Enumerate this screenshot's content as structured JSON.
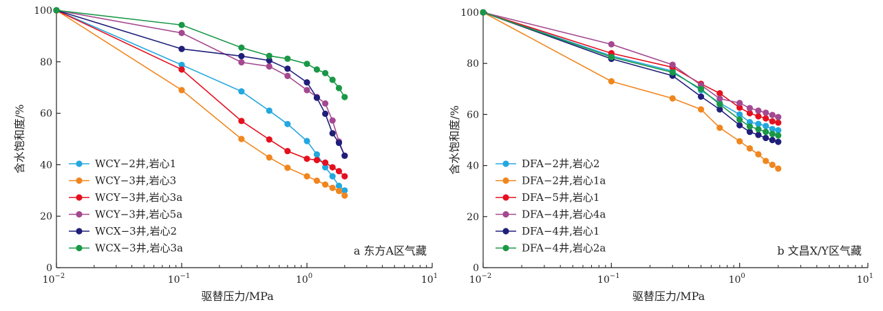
{
  "colors": {
    "cyan": "#23a7df",
    "orange": "#f0861e",
    "red": "#e5101f",
    "purple": "#a4488f",
    "navy": "#1f1f7a",
    "green": "#1a9846",
    "axis": "#222222"
  },
  "chart_data": [
    {
      "type": "line",
      "title": "",
      "panel_label": "a 东方A区气藏",
      "xlabel": "驱替压力/MPa",
      "ylabel": "含水饱和度/%",
      "x_scale": "log",
      "xlim": [
        0.01,
        10
      ],
      "ylim": [
        0,
        100
      ],
      "x_ticks": [
        {
          "base": "10",
          "exp": "−2"
        },
        {
          "base": "10",
          "exp": "−1"
        },
        {
          "base": "10",
          "exp": "0"
        },
        {
          "base": "10",
          "exp": "1"
        }
      ],
      "y_ticks": [
        "0",
        "20",
        "40",
        "60",
        "80",
        "100"
      ],
      "legend_position": "bottom-left",
      "series": [
        {
          "name": "WCY−2井,岩心1",
          "color_key": "cyan",
          "points": [
            [
              0.01,
              100
            ],
            [
              0.1,
              78.8
            ],
            [
              0.3,
              68.5
            ],
            [
              0.5,
              61
            ],
            [
              0.7,
              55.8
            ],
            [
              1.0,
              49.2
            ],
            [
              1.2,
              44
            ],
            [
              1.4,
              39
            ],
            [
              1.6,
              35.5
            ],
            [
              1.8,
              31.8
            ],
            [
              2.0,
              30
            ]
          ]
        },
        {
          "name": "WCY−3井,岩心3",
          "color_key": "orange",
          "points": [
            [
              0.01,
              100
            ],
            [
              0.1,
              69
            ],
            [
              0.3,
              50
            ],
            [
              0.5,
              42.8
            ],
            [
              0.7,
              38.8
            ],
            [
              1.0,
              35.5
            ],
            [
              1.2,
              33.8
            ],
            [
              1.4,
              32.3
            ],
            [
              1.6,
              31
            ],
            [
              1.8,
              29.8
            ],
            [
              2.0,
              28
            ]
          ]
        },
        {
          "name": "WCY−3井,岩心3a",
          "color_key": "red",
          "points": [
            [
              0.01,
              100
            ],
            [
              0.1,
              77
            ],
            [
              0.3,
              57
            ],
            [
              0.5,
              49.8
            ],
            [
              0.7,
              45.3
            ],
            [
              1.0,
              42.3
            ],
            [
              1.2,
              41.8
            ],
            [
              1.4,
              40.8
            ],
            [
              1.6,
              39
            ],
            [
              1.8,
              37.5
            ],
            [
              2.0,
              35.5
            ]
          ]
        },
        {
          "name": "WCY−3井,岩心5a",
          "color_key": "purple",
          "points": [
            [
              0.01,
              100
            ],
            [
              0.1,
              91.2
            ],
            [
              0.3,
              79.8
            ],
            [
              0.5,
              78.2
            ],
            [
              0.7,
              74.5
            ],
            [
              1.0,
              69
            ],
            [
              1.2,
              66.3
            ],
            [
              1.4,
              63.8
            ],
            [
              1.6,
              57.2
            ],
            [
              1.8,
              49
            ],
            [
              2.0,
              43.5
            ]
          ]
        },
        {
          "name": "WCX−3井,岩心2",
          "color_key": "navy",
          "points": [
            [
              0.01,
              100
            ],
            [
              0.1,
              85
            ],
            [
              0.3,
              82.2
            ],
            [
              0.5,
              80.5
            ],
            [
              0.7,
              77.3
            ],
            [
              1.0,
              72
            ],
            [
              1.2,
              66
            ],
            [
              1.4,
              59.8
            ],
            [
              1.6,
              52.2
            ],
            [
              1.8,
              48.5
            ],
            [
              2.0,
              43.5
            ]
          ]
        },
        {
          "name": "WCX−3井,岩心3a",
          "color_key": "green",
          "points": [
            [
              0.01,
              100
            ],
            [
              0.1,
              94.3
            ],
            [
              0.3,
              85.5
            ],
            [
              0.5,
              82.3
            ],
            [
              0.7,
              81.2
            ],
            [
              1.0,
              79.2
            ],
            [
              1.2,
              77
            ],
            [
              1.4,
              75.6
            ],
            [
              1.6,
              73
            ],
            [
              1.8,
              69.8
            ],
            [
              2.0,
              66.3
            ]
          ]
        }
      ]
    },
    {
      "type": "line",
      "title": "",
      "panel_label": "b 文昌X/Y区气藏",
      "xlabel": "驱替压力/MPa",
      "ylabel": "含水饱和度/%",
      "x_scale": "log",
      "xlim": [
        0.01,
        10
      ],
      "ylim": [
        0,
        100
      ],
      "x_ticks": [
        {
          "base": "10",
          "exp": "−2"
        },
        {
          "base": "10",
          "exp": "−1"
        },
        {
          "base": "10",
          "exp": "0"
        },
        {
          "base": "10",
          "exp": "1"
        }
      ],
      "y_ticks": [
        "0",
        "20",
        "40",
        "60",
        "80",
        "100"
      ],
      "legend_position": "bottom-left",
      "series": [
        {
          "name": "DFA−2井,岩心2",
          "color_key": "cyan",
          "points": [
            [
              0.01,
              100
            ],
            [
              0.1,
              83
            ],
            [
              0.3,
              77
            ],
            [
              0.5,
              69.5
            ],
            [
              0.7,
              64.5
            ],
            [
              1.0,
              60
            ],
            [
              1.2,
              57
            ],
            [
              1.4,
              56.3
            ],
            [
              1.6,
              55.5
            ],
            [
              1.8,
              54.3
            ],
            [
              2.0,
              53.8
            ]
          ]
        },
        {
          "name": "DFA−2井,岩心1a",
          "color_key": "orange",
          "points": [
            [
              0.01,
              100
            ],
            [
              0.1,
              73
            ],
            [
              0.3,
              66.3
            ],
            [
              0.5,
              62
            ],
            [
              0.7,
              54.8
            ],
            [
              1.0,
              49.5
            ],
            [
              1.2,
              46.7
            ],
            [
              1.4,
              44.4
            ],
            [
              1.6,
              41.8
            ],
            [
              1.8,
              40.3
            ],
            [
              2.0,
              38.8
            ]
          ]
        },
        {
          "name": "DFA−5井,岩心1",
          "color_key": "red",
          "points": [
            [
              0.01,
              100
            ],
            [
              0.1,
              84
            ],
            [
              0.3,
              78.5
            ],
            [
              0.5,
              72
            ],
            [
              0.7,
              68.3
            ],
            [
              1.0,
              62.7
            ],
            [
              1.2,
              60.5
            ],
            [
              1.4,
              59.3
            ],
            [
              1.6,
              58.5
            ],
            [
              1.8,
              57.3
            ],
            [
              2.0,
              56.8
            ]
          ]
        },
        {
          "name": "DFA−4井,岩心4a",
          "color_key": "purple",
          "points": [
            [
              0.01,
              100
            ],
            [
              0.1,
              87.5
            ],
            [
              0.3,
              79.5
            ],
            [
              0.5,
              71.5
            ],
            [
              0.7,
              66.2
            ],
            [
              1.0,
              64.5
            ],
            [
              1.2,
              62.5
            ],
            [
              1.4,
              61.5
            ],
            [
              1.6,
              60.7
            ],
            [
              1.8,
              59.8
            ],
            [
              2.0,
              59
            ]
          ]
        },
        {
          "name": "DFA−4井,岩心1",
          "color_key": "navy",
          "points": [
            [
              0.01,
              100
            ],
            [
              0.1,
              81.8
            ],
            [
              0.3,
              75.2
            ],
            [
              0.5,
              67
            ],
            [
              0.7,
              62
            ],
            [
              1.0,
              55.8
            ],
            [
              1.2,
              53.2
            ],
            [
              1.4,
              52
            ],
            [
              1.6,
              50.8
            ],
            [
              1.8,
              50
            ],
            [
              2.0,
              49.3
            ]
          ]
        },
        {
          "name": "DFA−4井,岩心2a",
          "color_key": "green",
          "points": [
            [
              0.01,
              100
            ],
            [
              0.1,
              82.5
            ],
            [
              0.3,
              76.5
            ],
            [
              0.5,
              70
            ],
            [
              0.7,
              64
            ],
            [
              1.0,
              58
            ],
            [
              1.2,
              55.3
            ],
            [
              1.4,
              54.2
            ],
            [
              1.6,
              53.2
            ],
            [
              1.8,
              52.4
            ],
            [
              2.0,
              51.8
            ]
          ]
        }
      ]
    }
  ]
}
